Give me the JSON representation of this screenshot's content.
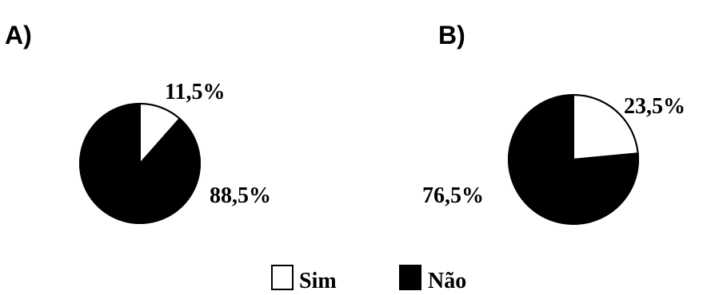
{
  "chart_data": [
    {
      "type": "pie",
      "panel_label": "A)",
      "slices": [
        {
          "label": "Sim",
          "value": 11.5,
          "text": "11,5%",
          "color": "#ffffff"
        },
        {
          "label": "Não",
          "value": 88.5,
          "text": "88,5%",
          "color": "#000000"
        }
      ]
    },
    {
      "type": "pie",
      "panel_label": "B)",
      "slices": [
        {
          "label": "Sim",
          "value": 23.5,
          "text": "23,5%",
          "color": "#ffffff"
        },
        {
          "label": "Não",
          "value": 76.5,
          "text": "76,5%",
          "color": "#000000"
        }
      ]
    }
  ],
  "legend": [
    {
      "label": "Sim",
      "color": "#ffffff"
    },
    {
      "label": "Não",
      "color": "#000000"
    }
  ]
}
